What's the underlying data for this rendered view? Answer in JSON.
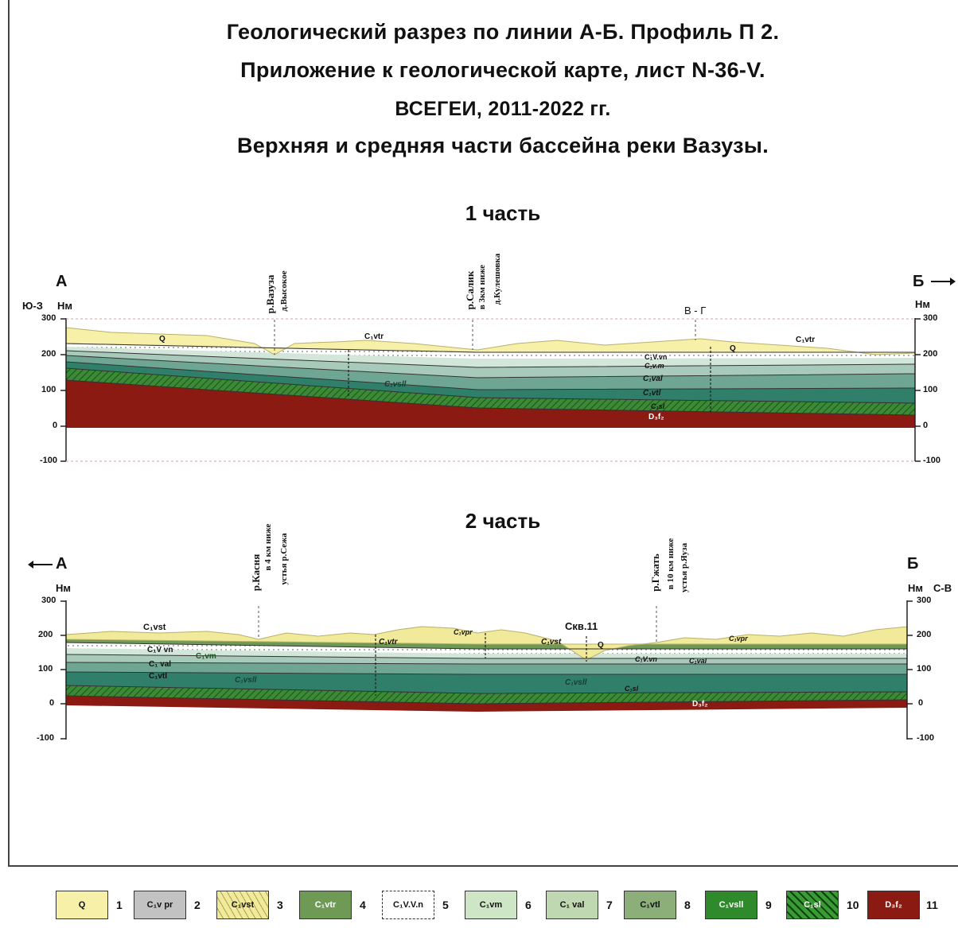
{
  "title": {
    "line1": "Геологический  разрез  по  линии А-Б. Профиль  П 2.",
    "line2": "Приложение  к  геологической  карте, лист N-36-V.",
    "line3": "ВСЕГЕИ, 2011-2022 гг.",
    "line4": "Верхняя  и  средняя  части  бассейна  реки  Вазузы."
  },
  "section1": {
    "heading": "1 часть",
    "left_point": "А",
    "right_point": "Б",
    "left_dir": "Ю-З",
    "axis_unit": "Нм",
    "ticks": [
      "300",
      "200",
      "100",
      "0",
      "-100"
    ],
    "labels": {
      "vazuza_river": "р.Вазуза",
      "vazuza_village": "д.Высокое",
      "salik_river": "р.Салик",
      "salik_note": "в 3км ниже",
      "salik_village": "д.Кулешовка",
      "vg": "В - Г",
      "q_left": "Q",
      "q_right": "Q",
      "c1vtr_a": "C₁vtr",
      "c1vtr_b": "C₁vtr",
      "c1vsl": "C₁vsll",
      "c1vvn": "C₁V.vn",
      "c1vm": "C₁v.m",
      "c1val": "C₁val",
      "c1vtl": "C₁vtl",
      "c1sl": "C₁sl",
      "d3f2": "D₃f₂"
    }
  },
  "section2": {
    "heading": "2 часть",
    "left_point": "А",
    "right_point": "Б",
    "right_dir": "С-В",
    "axis_unit": "Нм",
    "ticks": [
      "300",
      "200",
      "100",
      "0",
      "-100"
    ],
    "labels": {
      "kasnya_river": "р.Касня",
      "kasnya_note": "в 4 км ниже",
      "kasnya_mouth": "устья р.Сежа",
      "gzhat_river": "р.Гжать",
      "gzhat_note": "в 10 км ниже",
      "gzhat_mouth": "устья р.Яуза",
      "well": "Скв.11",
      "c1vst_top": "C₁vst",
      "c1vvn": "C₁V vn",
      "c1vm": "C₁vm",
      "c1val": "C₁ val",
      "c1vtl": "C₁vtl",
      "c1vsl": "C₁vsll",
      "c1vtr": "C₁vtr",
      "c1vpr_a": "C₁vpr",
      "c1vst_mid": "C₁vst",
      "q": "Q",
      "c1vvn_r": "C₁V.vn",
      "c1val_r": "C₁val",
      "c1vsl_mid": "C₁vsll",
      "c1vpr_b": "C₁vpr",
      "c1sl": "C₁sl",
      "d3f2": "D₃f₂"
    }
  },
  "legend": [
    {
      "code": "Q",
      "num": "1",
      "color": "#f6f0a8"
    },
    {
      "code": "C₁v pr",
      "num": "2",
      "color": "#c2c2c2"
    },
    {
      "code": "C₁vst",
      "num": "3",
      "color": "#f1ea9a"
    },
    {
      "code": "C₁vtr",
      "num": "4",
      "color": "#6f9a55"
    },
    {
      "code": "C₁V.V.n",
      "num": "5",
      "color": "#ffffff"
    },
    {
      "code": "C₁vm",
      "num": "6",
      "color": "#cfe6c6"
    },
    {
      "code": "C₁ val",
      "num": "7",
      "color": "#bfd8b2"
    },
    {
      "code": "C₁vtl",
      "num": "8",
      "color": "#8cae78"
    },
    {
      "code": "C₁vsll",
      "num": "9",
      "color": "#2f8a2c"
    },
    {
      "code": "C₁sl",
      "num": "10",
      "color": "#3a9a36"
    },
    {
      "code": "D₃f₂",
      "num": "11",
      "color": "#8a1a12"
    }
  ]
}
